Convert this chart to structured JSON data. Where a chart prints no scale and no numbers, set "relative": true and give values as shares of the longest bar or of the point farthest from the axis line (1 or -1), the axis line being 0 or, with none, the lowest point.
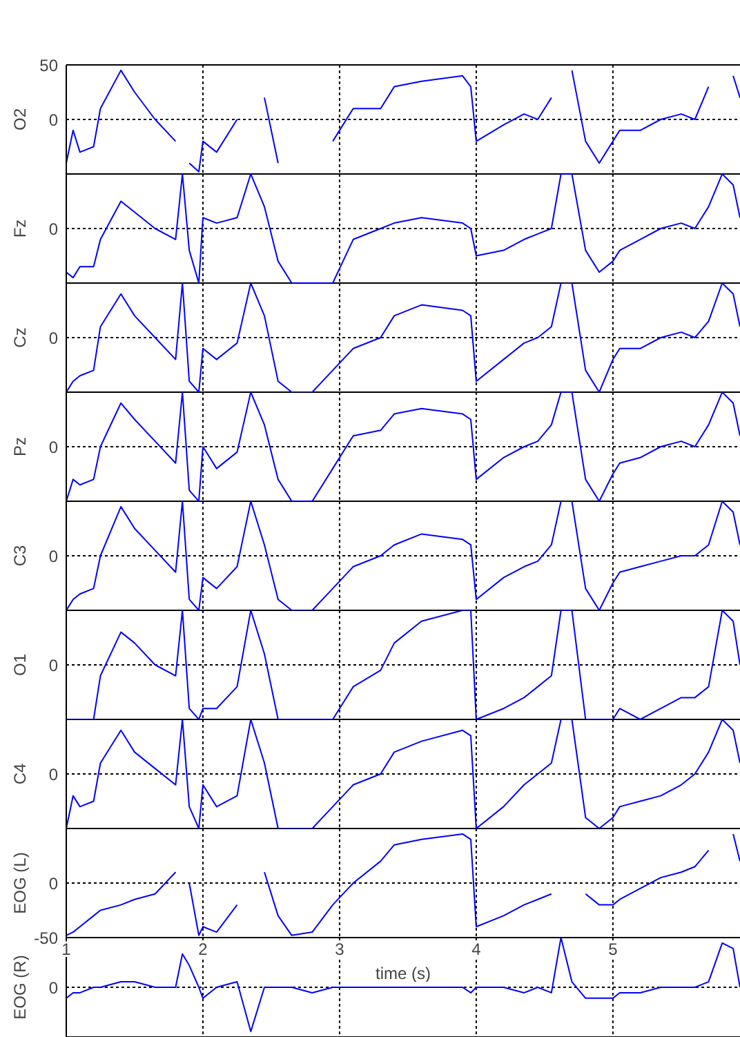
{
  "chart_data": [
    {
      "type": "line",
      "ylabel": "O2",
      "xlim": [
        1,
        5.93
      ],
      "xticks": [
        1,
        2,
        3,
        4,
        5
      ],
      "ylim": [
        -50,
        50
      ],
      "yticks": [
        50,
        0
      ],
      "grid": true,
      "tick_labels": "y",
      "x": [
        1.0,
        1.05,
        1.1,
        1.2,
        1.25,
        1.4,
        1.5,
        1.65,
        1.8,
        1.85,
        1.9,
        1.97,
        2.0,
        2.1,
        2.25,
        2.35,
        2.45,
        2.55,
        2.65,
        2.8,
        2.95,
        3.1,
        3.3,
        3.4,
        3.6,
        3.9,
        3.96,
        4.0,
        4.2,
        4.35,
        4.45,
        4.55,
        4.62,
        4.7,
        4.8,
        4.9,
        5.0,
        5.05,
        5.2,
        5.35,
        5.5,
        5.6,
        5.7,
        5.8,
        5.88,
        5.93
      ],
      "series": [
        {
          "color": "#0000ff",
          "values": [
            -40,
            -10,
            -30,
            -25,
            10,
            45,
            25,
            0,
            -20,
            null,
            -40,
            -48,
            -20,
            -30,
            0,
            null,
            20,
            -40,
            null,
            null,
            -20,
            10,
            10,
            30,
            35,
            40,
            30,
            -20,
            -5,
            5,
            0,
            20,
            null,
            45,
            -20,
            -40,
            -20,
            -10,
            -10,
            0,
            5,
            0,
            30,
            null,
            40,
            20
          ]
        }
      ]
    },
    {
      "type": "line",
      "ylabel": "Fz",
      "relative": true,
      "annotations": [
        "0"
      ],
      "xlim": [
        1,
        5.93
      ],
      "xticks": [
        1,
        2,
        3,
        4,
        5
      ],
      "grid": "x",
      "tick_labels": false,
      "x": [
        1.0,
        1.05,
        1.1,
        1.2,
        1.25,
        1.4,
        1.5,
        1.65,
        1.8,
        1.85,
        1.9,
        1.97,
        2.0,
        2.1,
        2.25,
        2.35,
        2.45,
        2.55,
        2.65,
        2.8,
        2.95,
        3.1,
        3.3,
        3.4,
        3.6,
        3.9,
        3.96,
        4.0,
        4.2,
        4.35,
        4.45,
        4.55,
        4.62,
        4.7,
        4.8,
        4.9,
        5.0,
        5.05,
        5.2,
        5.35,
        5.5,
        5.6,
        5.7,
        5.8,
        5.88,
        5.93
      ],
      "series": [
        {
          "color": "#0000ff",
          "values": [
            -0.8,
            -0.9,
            -0.7,
            -0.7,
            -0.2,
            0.5,
            0.3,
            0,
            -0.2,
            1,
            -0.4,
            -1,
            0.2,
            0.1,
            0.2,
            1,
            0.4,
            -0.6,
            -1,
            -1,
            -1,
            -0.2,
            0,
            0.1,
            0.2,
            0.1,
            0,
            -0.5,
            -0.4,
            -0.2,
            -0.1,
            0,
            1,
            1,
            -0.4,
            -0.8,
            -0.6,
            -0.4,
            -0.2,
            0,
            0.1,
            0,
            0.4,
            1,
            0.8,
            0.2
          ]
        }
      ]
    },
    {
      "type": "line",
      "ylabel": "Cz",
      "relative": true,
      "annotations": [
        "0"
      ],
      "xlim": [
        1,
        5.93
      ],
      "xticks": [
        1,
        2,
        3,
        4,
        5
      ],
      "grid": "x",
      "tick_labels": false,
      "x": [
        1.0,
        1.05,
        1.1,
        1.2,
        1.25,
        1.4,
        1.5,
        1.65,
        1.8,
        1.85,
        1.9,
        1.97,
        2.0,
        2.1,
        2.25,
        2.35,
        2.45,
        2.55,
        2.65,
        2.8,
        2.95,
        3.1,
        3.3,
        3.4,
        3.6,
        3.9,
        3.96,
        4.0,
        4.2,
        4.35,
        4.45,
        4.55,
        4.62,
        4.7,
        4.8,
        4.9,
        5.0,
        5.05,
        5.2,
        5.35,
        5.5,
        5.6,
        5.7,
        5.8,
        5.88,
        5.93
      ],
      "series": [
        {
          "color": "#0000ff",
          "values": [
            -1,
            -0.8,
            -0.7,
            -0.6,
            0.2,
            0.8,
            0.4,
            0,
            -0.4,
            1,
            -0.8,
            -1,
            -0.2,
            -0.4,
            -0.1,
            1,
            0.4,
            -0.8,
            -1,
            -1,
            -0.6,
            -0.2,
            0,
            0.4,
            0.6,
            0.5,
            0.4,
            -0.8,
            -0.4,
            -0.1,
            0,
            0.2,
            1,
            1,
            -0.6,
            -1,
            -0.4,
            -0.2,
            -0.2,
            0,
            0.1,
            0,
            0.3,
            1,
            0.8,
            0.2
          ]
        }
      ]
    },
    {
      "type": "line",
      "ylabel": "Pz",
      "relative": true,
      "annotations": [
        "0"
      ],
      "xlim": [
        1,
        5.93
      ],
      "xticks": [
        1,
        2,
        3,
        4,
        5
      ],
      "grid": "x",
      "tick_labels": false,
      "x": [
        1.0,
        1.05,
        1.1,
        1.2,
        1.25,
        1.4,
        1.5,
        1.65,
        1.8,
        1.85,
        1.9,
        1.97,
        2.0,
        2.1,
        2.25,
        2.35,
        2.45,
        2.55,
        2.65,
        2.8,
        2.95,
        3.1,
        3.3,
        3.4,
        3.6,
        3.9,
        3.96,
        4.0,
        4.2,
        4.35,
        4.45,
        4.55,
        4.62,
        4.7,
        4.8,
        4.9,
        5.0,
        5.05,
        5.2,
        5.35,
        5.5,
        5.6,
        5.7,
        5.8,
        5.88,
        5.93
      ],
      "series": [
        {
          "color": "#0000ff",
          "values": [
            -1,
            -0.6,
            -0.7,
            -0.6,
            0,
            0.8,
            0.5,
            0.1,
            -0.3,
            1,
            -0.8,
            -1,
            0,
            -0.4,
            -0.1,
            1,
            0.4,
            -0.6,
            -1,
            -1,
            -0.4,
            0.2,
            0.3,
            0.6,
            0.7,
            0.6,
            0.5,
            -0.6,
            -0.2,
            0,
            0.1,
            0.4,
            1,
            1,
            -0.6,
            -1,
            -0.5,
            -0.3,
            -0.2,
            0,
            0.1,
            0,
            0.4,
            1,
            0.8,
            0.2
          ]
        }
      ]
    },
    {
      "type": "line",
      "ylabel": "C3",
      "relative": true,
      "annotations": [
        "0"
      ],
      "xlim": [
        1,
        5.93
      ],
      "xticks": [
        1,
        2,
        3,
        4,
        5
      ],
      "grid": "x",
      "tick_labels": false,
      "x": [
        1.0,
        1.05,
        1.1,
        1.2,
        1.25,
        1.4,
        1.5,
        1.65,
        1.8,
        1.85,
        1.9,
        1.97,
        2.0,
        2.1,
        2.25,
        2.35,
        2.45,
        2.55,
        2.65,
        2.8,
        2.95,
        3.1,
        3.3,
        3.4,
        3.6,
        3.9,
        3.96,
        4.0,
        4.2,
        4.35,
        4.45,
        4.55,
        4.62,
        4.7,
        4.8,
        4.9,
        5.0,
        5.05,
        5.2,
        5.35,
        5.5,
        5.6,
        5.7,
        5.8,
        5.88,
        5.93
      ],
      "series": [
        {
          "color": "#0000ff",
          "values": [
            -1,
            -0.8,
            -0.7,
            -0.6,
            0,
            0.9,
            0.5,
            0.1,
            -0.3,
            1,
            -0.8,
            -1,
            -0.4,
            -0.6,
            -0.2,
            1,
            0.2,
            -0.8,
            -1,
            -1,
            -0.6,
            -0.2,
            0,
            0.2,
            0.4,
            0.3,
            0.2,
            -0.8,
            -0.4,
            -0.2,
            -0.1,
            0.2,
            1,
            1,
            -0.6,
            -1,
            -0.5,
            -0.3,
            -0.2,
            -0.1,
            0,
            0,
            0.2,
            1,
            0.8,
            0.2
          ]
        }
      ]
    },
    {
      "type": "line",
      "ylabel": "O1",
      "relative": true,
      "annotations": [
        "0"
      ],
      "xlim": [
        1,
        5.93
      ],
      "xticks": [
        1,
        2,
        3,
        4,
        5
      ],
      "grid": "x",
      "tick_labels": false,
      "x": [
        1.0,
        1.05,
        1.1,
        1.2,
        1.25,
        1.4,
        1.5,
        1.65,
        1.8,
        1.85,
        1.9,
        1.97,
        2.0,
        2.1,
        2.25,
        2.35,
        2.45,
        2.55,
        2.65,
        2.8,
        2.95,
        3.1,
        3.3,
        3.4,
        3.6,
        3.9,
        3.96,
        4.0,
        4.2,
        4.35,
        4.45,
        4.55,
        4.62,
        4.7,
        4.8,
        4.9,
        5.0,
        5.05,
        5.2,
        5.35,
        5.5,
        5.6,
        5.7,
        5.8,
        5.88,
        5.93
      ],
      "series": [
        {
          "color": "#0000ff",
          "values": [
            -1,
            -1,
            -1,
            -1,
            -0.2,
            0.6,
            0.4,
            0,
            -0.2,
            1,
            -0.8,
            -1,
            -0.8,
            -0.8,
            -0.4,
            1,
            0.2,
            -1,
            -1,
            -1,
            -1,
            -0.4,
            -0.1,
            0.4,
            0.8,
            1,
            1,
            -1,
            -0.8,
            -0.6,
            -0.4,
            -0.2,
            1,
            1,
            -1,
            -1,
            -1,
            -0.8,
            -1,
            -0.8,
            -0.6,
            -0.6,
            -0.4,
            1,
            0.8,
            0
          ]
        }
      ]
    },
    {
      "type": "line",
      "ylabel": "C4",
      "relative": true,
      "annotations": [
        "0"
      ],
      "xlim": [
        1,
        5.93
      ],
      "xticks": [
        1,
        2,
        3,
        4,
        5
      ],
      "grid": "x",
      "tick_labels": false,
      "x": [
        1.0,
        1.05,
        1.1,
        1.2,
        1.25,
        1.4,
        1.5,
        1.65,
        1.8,
        1.85,
        1.9,
        1.97,
        2.0,
        2.1,
        2.25,
        2.35,
        2.45,
        2.55,
        2.65,
        2.8,
        2.95,
        3.1,
        3.3,
        3.4,
        3.6,
        3.9,
        3.96,
        4.0,
        4.2,
        4.35,
        4.45,
        4.55,
        4.62,
        4.7,
        4.8,
        4.9,
        5.0,
        5.05,
        5.2,
        5.35,
        5.5,
        5.6,
        5.7,
        5.8,
        5.88,
        5.93
      ],
      "series": [
        {
          "color": "#0000ff",
          "values": [
            -1,
            -0.4,
            -0.6,
            -0.5,
            0.2,
            0.8,
            0.4,
            0.1,
            -0.2,
            1,
            -0.6,
            -1,
            -0.2,
            -0.6,
            -0.4,
            1,
            0.2,
            -1,
            -1,
            -1,
            -0.6,
            -0.2,
            0,
            0.4,
            0.6,
            0.8,
            0.7,
            -1,
            -0.6,
            -0.2,
            0,
            0.2,
            1,
            1,
            -0.8,
            -1,
            -0.8,
            -0.6,
            -0.5,
            -0.4,
            -0.2,
            0,
            0.4,
            1,
            0.8,
            0.2
          ]
        }
      ]
    },
    {
      "type": "line",
      "ylabel": "EOG (L)",
      "xlabel": "time (s)",
      "xlim": [
        1,
        5.93
      ],
      "xticks": [
        1,
        2,
        3,
        4,
        5
      ],
      "ylim": [
        -50,
        50
      ],
      "yticks": [
        {
          "value": 50,
          "label": null
        },
        0,
        -50
      ],
      "grid": true,
      "x": [
        1.0,
        1.05,
        1.1,
        1.2,
        1.25,
        1.4,
        1.5,
        1.65,
        1.8,
        1.85,
        1.9,
        1.97,
        2.0,
        2.1,
        2.25,
        2.35,
        2.45,
        2.55,
        2.65,
        2.8,
        2.95,
        3.1,
        3.3,
        3.4,
        3.6,
        3.9,
        3.96,
        4.0,
        4.2,
        4.35,
        4.45,
        4.55,
        4.62,
        4.7,
        4.8,
        4.9,
        5.0,
        5.05,
        5.2,
        5.35,
        5.5,
        5.6,
        5.7,
        5.8,
        5.88,
        5.93
      ],
      "series": [
        {
          "color": "#0000ff",
          "values": [
            -48,
            -45,
            -40,
            -30,
            -25,
            -20,
            -15,
            -10,
            10,
            null,
            0,
            -48,
            -40,
            -45,
            -20,
            null,
            10,
            -30,
            -48,
            -45,
            -20,
            0,
            20,
            35,
            40,
            45,
            40,
            -40,
            -30,
            -20,
            -15,
            -10,
            null,
            null,
            -10,
            -20,
            -20,
            -15,
            -5,
            5,
            10,
            15,
            30,
            null,
            45,
            20
          ]
        }
      ]
    },
    {
      "type": "line",
      "ylabel": "EOG (R)",
      "relative": true,
      "annotations": [
        "0"
      ],
      "xlim": [
        1,
        5.93
      ],
      "xticks": [
        1,
        2,
        3,
        4,
        5
      ],
      "grid": "x",
      "tick_labels": false,
      "x": [
        1.0,
        1.05,
        1.1,
        1.2,
        1.25,
        1.4,
        1.5,
        1.65,
        1.8,
        1.85,
        1.9,
        1.97,
        2.0,
        2.1,
        2.25,
        2.35,
        2.45,
        2.55,
        2.65,
        2.8,
        2.95,
        3.1,
        3.3,
        3.4,
        3.6,
        3.9,
        3.96,
        4.0,
        4.2,
        4.35,
        4.45,
        4.55,
        4.62,
        4.7,
        4.8,
        4.9,
        5.0,
        5.05,
        5.2,
        5.35,
        5.5,
        5.6,
        5.7,
        5.8,
        5.88,
        5.93
      ],
      "series": [
        {
          "color": "#0000ff",
          "values": [
            -0.22,
            -0.11,
            -0.11,
            0,
            0,
            0.11,
            0.11,
            0,
            0,
            0.67,
            0.44,
            0,
            -0.22,
            0,
            0.11,
            -0.89,
            0,
            0,
            0,
            -0.11,
            0,
            0,
            0,
            0,
            0,
            0,
            -0.11,
            0,
            0,
            -0.11,
            0,
            -0.11,
            1,
            0.11,
            -0.22,
            -0.22,
            -0.22,
            -0.11,
            -0.11,
            0,
            0,
            0,
            0.11,
            0.89,
            0.78,
            0
          ]
        }
      ]
    }
  ]
}
